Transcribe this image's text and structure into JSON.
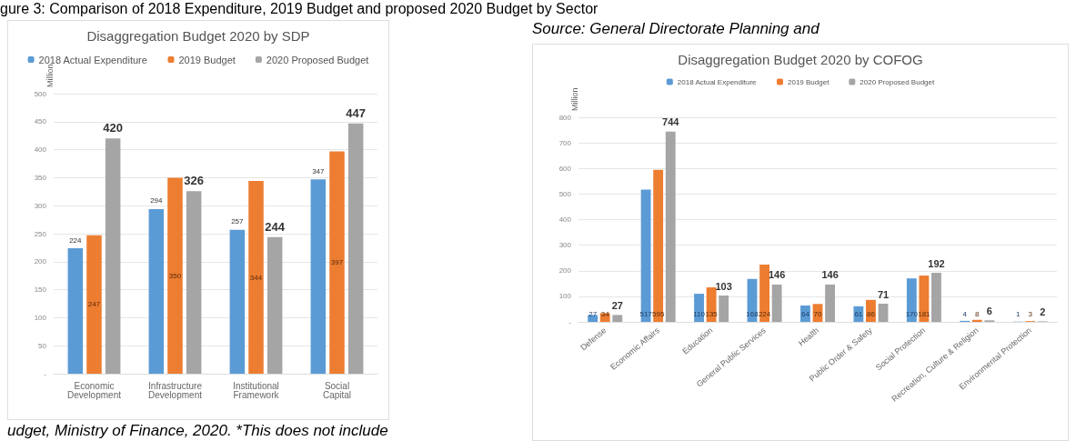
{
  "chart_data": [
    {
      "type": "bar",
      "title": "Disaggregation Budget 2020 by SDP",
      "ylabel": "Million",
      "annotations": [
        "gure 3: Comparison of 2018 Expenditure, 2019 Budget and proposed 2020 Budget by Sector",
        "udget, Ministry of Finance, 2020. *This does not include"
      ],
      "categories": [
        "Economic Development",
        "Infrastructure Development",
        "Institutional Framework",
        "Social Capital"
      ],
      "series": [
        {
          "name": "2018 Actual Expenditure",
          "color": "#5b9bd5",
          "values": [
            224,
            294,
            257,
            347
          ]
        },
        {
          "name": "2019 Budget",
          "color": "#ed7d31",
          "values": [
            247,
            350,
            344,
            397
          ]
        },
        {
          "name": "2020 Proposed Budget",
          "color": "#a5a5a5",
          "values": [
            420,
            326,
            244,
            447
          ]
        }
      ],
      "ylim": [
        0,
        500
      ],
      "yticks": [
        {
          "value": 0,
          "label": "-"
        },
        50,
        100,
        150,
        200,
        250,
        300,
        350,
        400,
        450,
        500
      ],
      "grid": "y",
      "legend": "top",
      "data_labels": true
    },
    {
      "type": "bar",
      "title": "Disaggregation Budget 2020 by COFOG",
      "ylabel": "Million",
      "annotations": [
        "Source: General Directorate Planning and"
      ],
      "categories": [
        "Defense",
        "Economic Affairs",
        "Education",
        "General Public Services",
        "Health",
        "Public Order & Safety",
        "Social Protection",
        "Recreation, Culture & Religion",
        "Environmental Protection"
      ],
      "series": [
        {
          "name": "2018 Actual Expenditure",
          "color": "#5b9bd5",
          "values": [
            27,
            517,
            110,
            168,
            64,
            61,
            170,
            4,
            1
          ]
        },
        {
          "name": "2019 Budget",
          "color": "#ed7d31",
          "values": [
            34,
            595,
            135,
            224,
            70,
            86,
            181,
            8,
            3
          ]
        },
        {
          "name": "2020 Proposed Budget",
          "color": "#a5a5a5",
          "values": [
            27,
            744,
            103,
            146,
            146,
            71,
            192,
            6,
            2
          ]
        }
      ],
      "ylim": [
        0,
        800
      ],
      "yticks": [
        {
          "value": 0,
          "label": "-"
        },
        100,
        200,
        300,
        400,
        500,
        600,
        700,
        800
      ],
      "grid": "y",
      "legend": "top",
      "data_labels": true
    }
  ]
}
